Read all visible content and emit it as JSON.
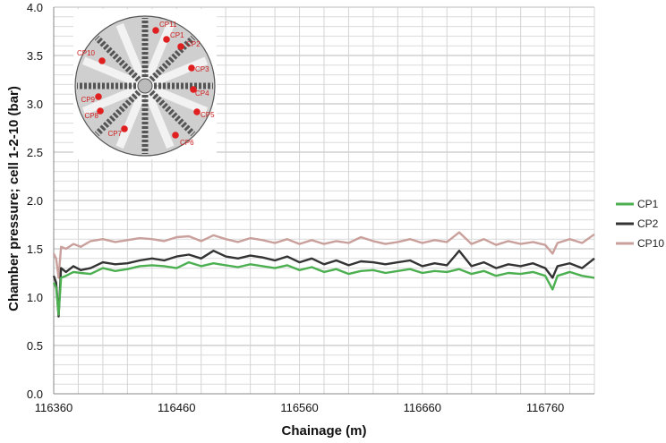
{
  "chart_data": {
    "type": "line",
    "xlabel": "Chainage (m)",
    "ylabel": "Chamber pressure; cell 1-2-10 (bar)",
    "xlim": [
      116360,
      116800
    ],
    "ylim": [
      0.0,
      4.0
    ],
    "x_ticks": [
      116360,
      116460,
      116560,
      116660,
      116760
    ],
    "y_ticks": [
      "0.0",
      "0.5",
      "1.0",
      "1.5",
      "2.0",
      "2.5",
      "3.0",
      "3.5",
      "4.0"
    ],
    "grid": true,
    "legend_position": "right",
    "series": [
      {
        "name": "CP1",
        "color": "#4caf50",
        "x": [
          116360,
          116362,
          116364,
          116366,
          116370,
          116376,
          116382,
          116390,
          116400,
          116410,
          116420,
          116430,
          116440,
          116450,
          116460,
          116470,
          116480,
          116490,
          116500,
          116510,
          116520,
          116530,
          116540,
          116550,
          116560,
          116570,
          116580,
          116590,
          116600,
          116610,
          116620,
          116630,
          116640,
          116650,
          116660,
          116670,
          116680,
          116690,
          116700,
          116710,
          116720,
          116730,
          116740,
          116750,
          116760,
          116766,
          116770,
          116780,
          116790,
          116800
        ],
        "y": [
          1.15,
          1.1,
          0.82,
          1.2,
          1.22,
          1.26,
          1.25,
          1.24,
          1.3,
          1.27,
          1.29,
          1.32,
          1.33,
          1.32,
          1.3,
          1.36,
          1.32,
          1.35,
          1.33,
          1.31,
          1.34,
          1.32,
          1.3,
          1.33,
          1.28,
          1.31,
          1.26,
          1.29,
          1.24,
          1.27,
          1.28,
          1.25,
          1.27,
          1.29,
          1.25,
          1.27,
          1.26,
          1.29,
          1.24,
          1.27,
          1.22,
          1.25,
          1.24,
          1.26,
          1.22,
          1.08,
          1.22,
          1.26,
          1.22,
          1.2
        ]
      },
      {
        "name": "CP2",
        "color": "#333333",
        "x": [
          116360,
          116362,
          116364,
          116366,
          116370,
          116376,
          116382,
          116390,
          116400,
          116410,
          116420,
          116430,
          116440,
          116450,
          116460,
          116470,
          116480,
          116490,
          116500,
          116510,
          116520,
          116530,
          116540,
          116550,
          116560,
          116570,
          116580,
          116590,
          116600,
          116610,
          116620,
          116630,
          116640,
          116650,
          116660,
          116670,
          116680,
          116690,
          116700,
          116710,
          116720,
          116730,
          116740,
          116750,
          116760,
          116766,
          116770,
          116780,
          116790,
          116800
        ],
        "y": [
          1.22,
          1.15,
          0.8,
          1.3,
          1.26,
          1.32,
          1.28,
          1.3,
          1.36,
          1.34,
          1.35,
          1.38,
          1.4,
          1.38,
          1.42,
          1.44,
          1.4,
          1.48,
          1.42,
          1.4,
          1.43,
          1.41,
          1.38,
          1.42,
          1.36,
          1.4,
          1.34,
          1.38,
          1.33,
          1.37,
          1.36,
          1.34,
          1.36,
          1.38,
          1.32,
          1.35,
          1.33,
          1.48,
          1.32,
          1.36,
          1.3,
          1.34,
          1.32,
          1.35,
          1.3,
          1.2,
          1.32,
          1.35,
          1.3,
          1.4
        ]
      },
      {
        "name": "CP10",
        "color": "#c9a09c",
        "x": [
          116360,
          116362,
          116364,
          116366,
          116370,
          116376,
          116382,
          116390,
          116400,
          116410,
          116420,
          116430,
          116440,
          116450,
          116460,
          116470,
          116480,
          116490,
          116500,
          116510,
          116520,
          116530,
          116540,
          116550,
          116560,
          116570,
          116580,
          116590,
          116600,
          116610,
          116620,
          116630,
          116640,
          116650,
          116660,
          116670,
          116680,
          116690,
          116700,
          116710,
          116720,
          116730,
          116740,
          116750,
          116760,
          116766,
          116770,
          116780,
          116790,
          116800
        ],
        "y": [
          1.45,
          1.4,
          1.2,
          1.52,
          1.5,
          1.55,
          1.52,
          1.58,
          1.6,
          1.57,
          1.59,
          1.61,
          1.6,
          1.58,
          1.62,
          1.63,
          1.58,
          1.64,
          1.6,
          1.57,
          1.61,
          1.59,
          1.56,
          1.6,
          1.55,
          1.59,
          1.55,
          1.58,
          1.56,
          1.62,
          1.58,
          1.55,
          1.57,
          1.6,
          1.56,
          1.59,
          1.57,
          1.67,
          1.55,
          1.6,
          1.54,
          1.58,
          1.55,
          1.57,
          1.54,
          1.45,
          1.56,
          1.6,
          1.56,
          1.65
        ]
      }
    ]
  },
  "inset": {
    "labels": [
      "CP11",
      "CP1",
      "CP2",
      "CP3",
      "CP4",
      "CP5",
      "CP6",
      "CP7",
      "CP8",
      "CP9",
      "CP10"
    ]
  }
}
